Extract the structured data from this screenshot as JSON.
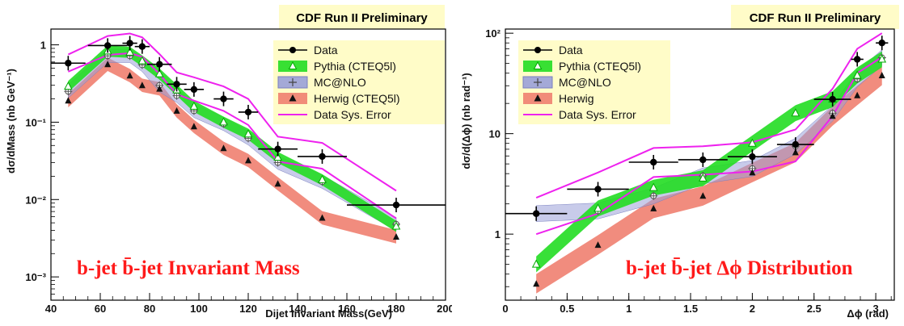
{
  "chart_data": [
    {
      "type": "line",
      "watermark": "CDF Run II Preliminary",
      "title": "b-jet b̄-jet Invariant Mass",
      "xlabel": "Dijet Invariant Mass(GeV)",
      "ylabel": "dσ/dMass (nb GeV⁻¹)",
      "xlim": [
        40,
        200
      ],
      "ylim": [
        0.0005,
        1.6
      ],
      "yscale": "log",
      "xticks": [
        40,
        60,
        80,
        100,
        120,
        140,
        160,
        180,
        200
      ],
      "yticks": [
        {
          "v": 1,
          "label": "1"
        },
        {
          "v": 0.1,
          "label": "10⁻¹"
        },
        {
          "v": 0.01,
          "label": "10⁻²"
        },
        {
          "v": 0.001,
          "label": "10⁻³"
        }
      ],
      "legend_position": "top-right",
      "series": [
        {
          "name": "Data",
          "kind": "points",
          "color": "#000000",
          "x": [
            47,
            63,
            72,
            77,
            84,
            91,
            98,
            110,
            120,
            132,
            150,
            180
          ],
          "y": [
            0.58,
            0.98,
            1.05,
            0.95,
            0.56,
            0.31,
            0.265,
            0.2,
            0.135,
            0.045,
            0.036,
            0.0085
          ],
          "xerr": [
            7,
            8,
            3,
            3,
            5,
            4,
            4,
            4,
            4,
            8,
            10,
            20
          ]
        },
        {
          "name": "Pythia (CTEQ5l)",
          "kind": "band",
          "color": "#22dd22",
          "x": [
            47,
            63,
            72,
            77,
            84,
            91,
            98,
            110,
            120,
            132,
            150,
            180
          ],
          "y": [
            0.29,
            0.83,
            0.8,
            0.62,
            0.42,
            0.26,
            0.16,
            0.1,
            0.07,
            0.035,
            0.018,
            0.0045
          ]
        },
        {
          "name": "MC@NLO",
          "kind": "band",
          "color": "#9aa0d8",
          "x": [
            47,
            63,
            72,
            77,
            84,
            91,
            98,
            110,
            120,
            132,
            150,
            180
          ],
          "y": [
            0.25,
            0.72,
            0.72,
            0.55,
            0.3,
            0.22,
            0.14,
            0.095,
            0.062,
            0.03,
            0.017,
            0.0048
          ]
        },
        {
          "name": "Herwig (CTEQ5l)",
          "kind": "band",
          "color": "#f08070",
          "x": [
            47,
            63,
            72,
            77,
            84,
            91,
            98,
            110,
            120,
            132,
            150,
            180
          ],
          "y": [
            0.19,
            0.56,
            0.4,
            0.3,
            0.27,
            0.14,
            0.088,
            0.046,
            0.032,
            0.016,
            0.0058,
            0.0033
          ]
        },
        {
          "name": "Data Sys. Error",
          "kind": "envelope",
          "color": "#ee22ee",
          "x": [
            47,
            63,
            72,
            77,
            84,
            91,
            98,
            110,
            120,
            132,
            150,
            180
          ],
          "upper": [
            0.75,
            1.3,
            1.4,
            1.25,
            0.76,
            0.44,
            0.38,
            0.29,
            0.2,
            0.065,
            0.054,
            0.013
          ],
          "lower": [
            0.45,
            0.74,
            0.78,
            0.7,
            0.42,
            0.23,
            0.19,
            0.14,
            0.092,
            0.031,
            0.025,
            0.0057
          ]
        }
      ]
    },
    {
      "type": "line",
      "watermark": "CDF Run II Preliminary",
      "title": "b-jet b̄-jet Δϕ Distribution",
      "xlabel": "Δϕ (rad)",
      "ylabel": "dσ/d(Δϕ) (nb rad⁻¹)",
      "xlim": [
        0,
        3.15
      ],
      "ylim": [
        0.22,
        110
      ],
      "yscale": "log",
      "xticks": [
        0,
        0.5,
        1,
        1.5,
        2,
        2.5,
        3
      ],
      "yticks": [
        {
          "v": 1,
          "label": "1"
        },
        {
          "v": 10,
          "label": "10"
        },
        {
          "v": 100,
          "label": "10²"
        }
      ],
      "legend_position": "top-left",
      "series": [
        {
          "name": "Data",
          "kind": "points",
          "color": "#000000",
          "x": [
            0.25,
            0.75,
            1.2,
            1.6,
            2.0,
            2.35,
            2.65,
            2.85,
            3.05
          ],
          "y": [
            1.6,
            2.8,
            5.2,
            5.5,
            5.9,
            7.8,
            22,
            55,
            80
          ],
          "xerr": [
            0.25,
            0.25,
            0.2,
            0.2,
            0.2,
            0.15,
            0.15,
            0.05,
            0.05
          ]
        },
        {
          "name": "Pythia (CTEQ5l)",
          "kind": "band",
          "color": "#22dd22",
          "x": [
            0.25,
            0.75,
            1.2,
            1.6,
            2.0,
            2.35,
            2.65,
            2.85,
            3.05
          ],
          "y": [
            0.5,
            1.8,
            2.9,
            3.6,
            8,
            16,
            22,
            38,
            55
          ]
        },
        {
          "name": "MC@NLO",
          "kind": "band",
          "color": "#9aa0d8",
          "x": [
            0.25,
            0.75,
            1.2,
            1.6,
            2.0,
            2.35,
            2.65,
            2.85,
            3.05
          ],
          "y": [
            1.6,
            1.7,
            2.4,
            3.8,
            4.5,
            7.5,
            16,
            35,
            57
          ]
        },
        {
          "name": "Herwig",
          "kind": "band",
          "color": "#f08070",
          "x": [
            0.25,
            0.75,
            1.2,
            1.6,
            2.0,
            2.35,
            2.65,
            2.85,
            3.05
          ],
          "y": [
            0.32,
            0.78,
            1.8,
            2.4,
            4.1,
            6.5,
            15,
            24,
            38
          ]
        },
        {
          "name": "Data Sys. Error",
          "kind": "envelope",
          "color": "#ee22ee",
          "x": [
            0.25,
            0.75,
            1.2,
            1.6,
            2.0,
            2.35,
            2.65,
            2.85,
            3.05
          ],
          "upper": [
            2.3,
            4.1,
            7.2,
            7.5,
            8.2,
            11,
            28,
            70,
            100
          ],
          "lower": [
            1.0,
            1.6,
            3.7,
            3.9,
            4.2,
            5.3,
            15,
            40,
            58
          ]
        }
      ]
    }
  ]
}
